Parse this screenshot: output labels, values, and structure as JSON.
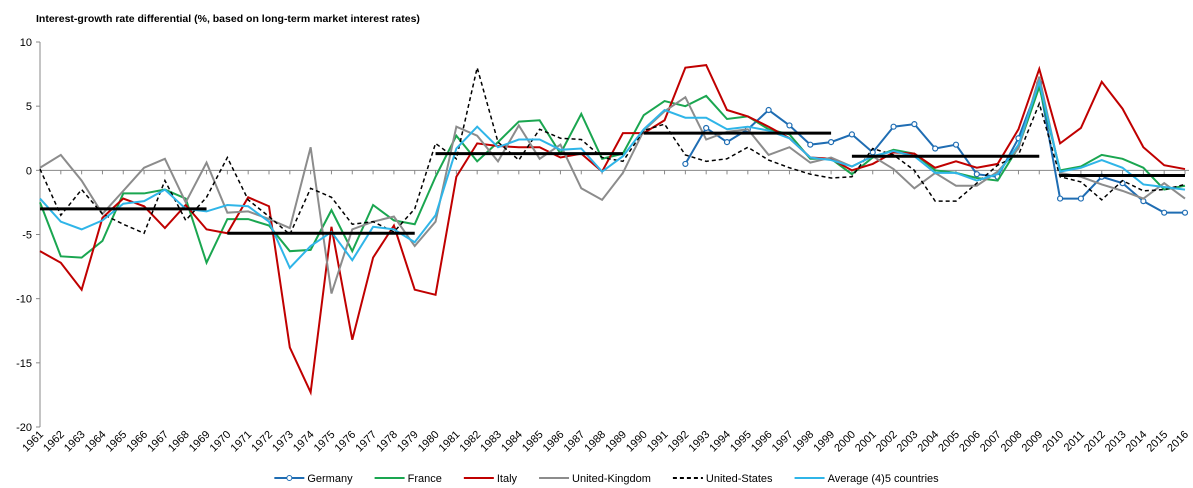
{
  "chart_data": {
    "type": "line",
    "title": "Interest-growth rate differential (%, based on long-term market interest rates)",
    "x": [
      1961,
      1962,
      1963,
      1964,
      1965,
      1966,
      1967,
      1968,
      1969,
      1970,
      1971,
      1972,
      1973,
      1974,
      1975,
      1976,
      1977,
      1978,
      1979,
      1980,
      1981,
      1982,
      1983,
      1984,
      1985,
      1986,
      1987,
      1988,
      1989,
      1990,
      1991,
      1992,
      1993,
      1994,
      1995,
      1996,
      1997,
      1998,
      1999,
      2000,
      2001,
      2002,
      2003,
      2004,
      2005,
      2006,
      2007,
      2008,
      2009,
      2010,
      2011,
      2012,
      2013,
      2014,
      2015,
      2016
    ],
    "xlim": [
      1961,
      2016
    ],
    "ylim": [
      -20,
      10
    ],
    "yticks": [
      -20,
      -15,
      -10,
      -5,
      0,
      5,
      10
    ],
    "series": [
      {
        "name": "Germany",
        "color": "#1f6db3",
        "marker": "circle",
        "dash": false,
        "values": [
          null,
          null,
          null,
          null,
          null,
          null,
          null,
          null,
          null,
          null,
          null,
          null,
          null,
          null,
          null,
          null,
          null,
          null,
          null,
          null,
          null,
          null,
          null,
          null,
          null,
          null,
          null,
          null,
          null,
          null,
          null,
          0.5,
          3.3,
          2.2,
          3.2,
          4.7,
          3.5,
          2.0,
          2.2,
          2.8,
          1.4,
          3.4,
          3.6,
          1.7,
          2.0,
          -0.3,
          -0.5,
          2.5,
          6.8,
          -2.2,
          -2.2,
          -0.5,
          -1.0,
          -2.4,
          -3.3,
          -3.3
        ]
      },
      {
        "name": "France",
        "color": "#1aa650",
        "dash": false,
        "values": [
          -2.5,
          -6.7,
          -6.8,
          -5.5,
          -1.8,
          -1.8,
          -1.5,
          -2.2,
          -7.2,
          -3.8,
          -3.8,
          -4.3,
          -6.3,
          -6.2,
          -3.1,
          -6.3,
          -2.7,
          -3.9,
          -4.2,
          -0.5,
          2.7,
          0.7,
          2.2,
          3.8,
          3.9,
          1.3,
          4.4,
          0.9,
          1.3,
          4.3,
          5.4,
          5.0,
          5.8,
          4.0,
          4.2,
          3.2,
          2.8,
          0.9,
          0.9,
          -0.3,
          1.0,
          1.6,
          1.3,
          0.0,
          -0.2,
          -0.6,
          -0.8,
          1.8,
          6.5,
          0.0,
          0.3,
          1.2,
          0.9,
          0.2,
          -1.5,
          -1.2
        ]
      },
      {
        "name": "Italy",
        "color": "#c00000",
        "dash": false,
        "values": [
          -6.3,
          -7.2,
          -9.3,
          -3.7,
          -2.2,
          -2.8,
          -4.5,
          -2.7,
          -4.6,
          -4.9,
          -2.1,
          -2.8,
          -13.8,
          -17.3,
          -4.4,
          -13.2,
          -6.8,
          -4.3,
          -9.3,
          -9.7,
          -0.5,
          2.1,
          1.9,
          1.8,
          1.8,
          1.0,
          1.3,
          -0.1,
          2.9,
          2.9,
          3.9,
          8.0,
          8.2,
          4.7,
          4.2,
          3.4,
          2.5,
          1.0,
          0.9,
          0.0,
          0.5,
          1.4,
          1.3,
          0.2,
          0.7,
          0.2,
          0.5,
          3.2,
          7.9,
          2.1,
          3.3,
          6.9,
          4.8,
          1.8,
          0.4,
          0.1
        ]
      },
      {
        "name": "United-Kingdom",
        "color": "#8c8c8c",
        "dash": false,
        "values": [
          0.2,
          1.2,
          -0.8,
          -3.4,
          -1.6,
          0.2,
          0.9,
          -2.5,
          0.6,
          -3.3,
          -3.2,
          -3.8,
          -4.5,
          1.8,
          -9.6,
          -4.6,
          -4.0,
          -3.6,
          -5.9,
          -4.0,
          3.4,
          2.7,
          0.7,
          3.5,
          0.9,
          2.0,
          -1.4,
          -2.3,
          -0.2,
          3.1,
          4.6,
          5.7,
          2.4,
          3.0,
          3.2,
          1.2,
          1.8,
          0.6,
          1.0,
          0.3,
          1.1,
          0.1,
          -1.4,
          -0.2,
          -1.2,
          -1.2,
          -0.1,
          1.7,
          7.3,
          -0.2,
          -0.5,
          -1.1,
          -1.6,
          -2.2,
          -1.0,
          -2.2
        ]
      },
      {
        "name": "United-States",
        "color": "#000000",
        "dash": true,
        "values": [
          0.1,
          -3.5,
          -1.5,
          -3.4,
          -4.2,
          -4.9,
          -0.8,
          -3.9,
          -2.1,
          1.0,
          -2.3,
          -3.6,
          -5.0,
          -1.4,
          -2.1,
          -4.2,
          -4.0,
          -4.8,
          -3.0,
          2.1,
          0.9,
          8.0,
          2.2,
          0.8,
          3.2,
          2.5,
          2.4,
          1.0,
          0.7,
          3.1,
          3.6,
          1.2,
          0.7,
          0.9,
          1.8,
          0.8,
          0.2,
          -0.3,
          -0.6,
          -0.5,
          1.7,
          1.2,
          0.0,
          -2.4,
          -2.4,
          -1.0,
          0.4,
          1.2,
          5.2,
          -0.5,
          -0.9,
          -2.3,
          -0.8,
          -1.6,
          -1.5,
          -1.1
        ]
      },
      {
        "name": "Average (4)5 countries",
        "color": "#2fb5e8",
        "dash": false,
        "values": [
          -2.2,
          -4.0,
          -4.6,
          -3.9,
          -2.6,
          -2.4,
          -1.5,
          -3.0,
          -3.2,
          -2.7,
          -2.8,
          -4.0,
          -7.6,
          -5.9,
          -4.8,
          -7.0,
          -4.4,
          -4.6,
          -5.6,
          -3.5,
          1.7,
          3.4,
          1.8,
          2.4,
          2.4,
          1.6,
          1.7,
          -0.1,
          1.1,
          3.2,
          4.7,
          4.1,
          4.1,
          3.2,
          3.4,
          3.1,
          2.5,
          1.0,
          0.8,
          0.3,
          1.1,
          1.5,
          1.1,
          -0.2,
          -0.2,
          -0.8,
          -0.3,
          2.0,
          6.9,
          -0.1,
          0.2,
          0.8,
          0.2,
          -1.1,
          -1.3,
          -1.5
        ]
      }
    ],
    "period_averages": {
      "color": "#000000",
      "segments": [
        {
          "x0": 1961,
          "x1": 1969,
          "value": -3.0
        },
        {
          "x0": 1970,
          "x1": 1979,
          "value": -4.9
        },
        {
          "x0": 1980,
          "x1": 1989,
          "value": 1.3
        },
        {
          "x0": 1990,
          "x1": 1999,
          "value": 2.9
        },
        {
          "x0": 2000,
          "x1": 2009,
          "value": 1.1
        },
        {
          "x0": 2010,
          "x1": 2016,
          "value": -0.4
        }
      ]
    },
    "legend": "bottom"
  }
}
